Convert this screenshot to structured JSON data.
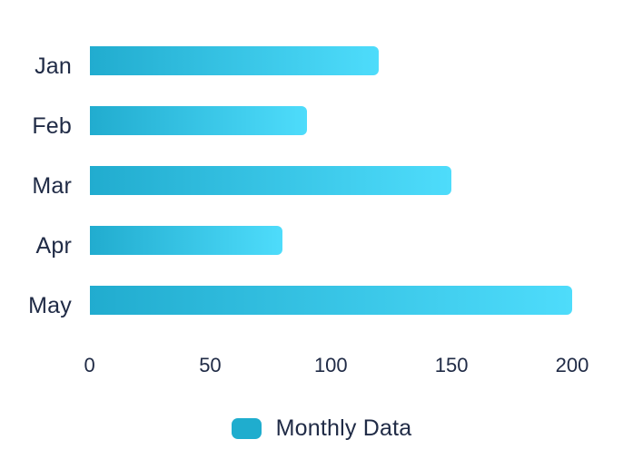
{
  "chart_data": {
    "type": "bar",
    "orientation": "horizontal",
    "title": "",
    "xlabel": "",
    "ylabel": "",
    "categories": [
      "Jan",
      "Feb",
      "Mar",
      "Apr",
      "May"
    ],
    "series": [
      {
        "name": "Monthly Data",
        "values": [
          120,
          90,
          150,
          80,
          200
        ]
      }
    ],
    "xlim": [
      0,
      200
    ],
    "xticks": [
      0,
      50,
      100,
      150,
      200
    ],
    "grid": false,
    "legend_position": "bottom",
    "colors": {
      "bar_gradient_start": "#21ACCF",
      "bar_gradient_end": "#4EDCFB",
      "legend_swatch": "#1FADCE",
      "text": "#202B46",
      "background": "#FFFFFF"
    }
  }
}
